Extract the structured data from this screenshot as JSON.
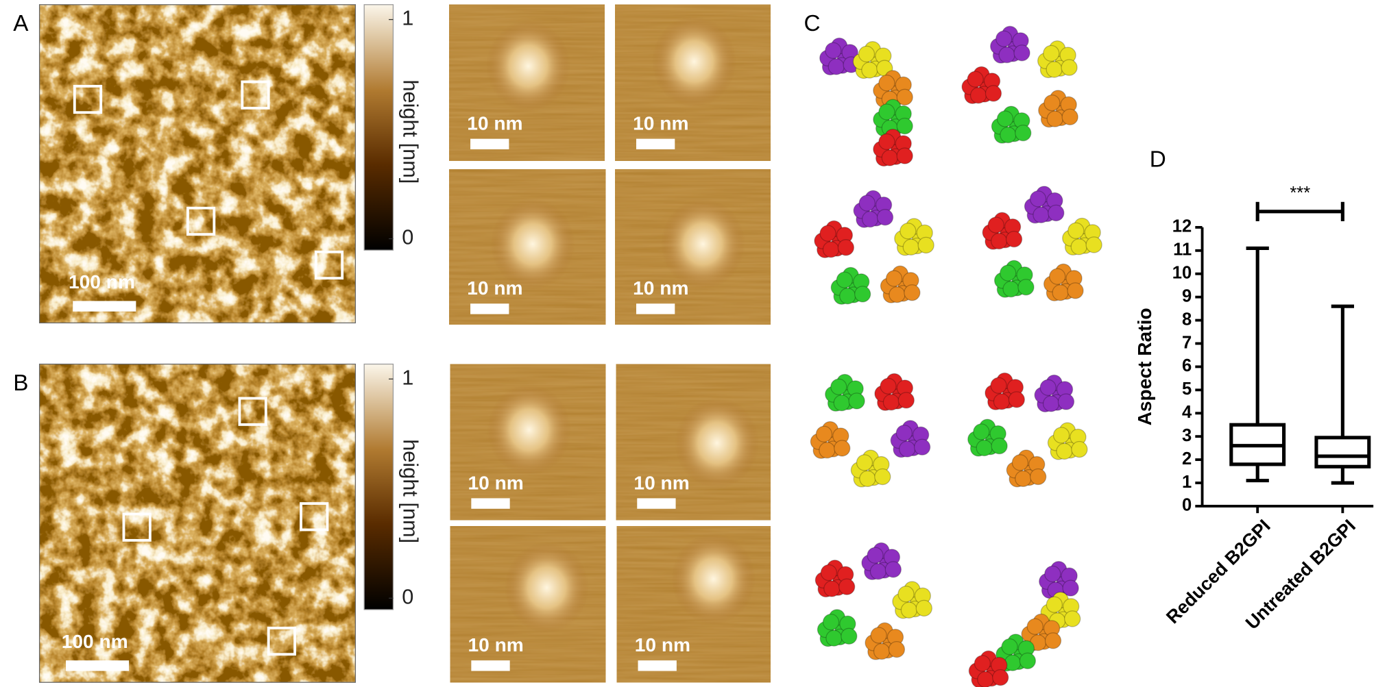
{
  "panels": [
    {
      "label": "A",
      "scale_bar": "100 nm",
      "colorbar": {
        "label": "height [nm]",
        "ticks": [
          1,
          0
        ]
      },
      "inset_scale_bars": [
        "10 nm",
        "10 nm",
        "10 nm",
        "10 nm"
      ]
    },
    {
      "label": "B",
      "scale_bar": "100 nm",
      "colorbar": {
        "label": "height [nm]",
        "ticks": [
          1,
          0
        ]
      },
      "inset_scale_bars": [
        "10 nm",
        "10 nm",
        "10 nm",
        "10 nm"
      ]
    },
    {
      "label": "C"
    },
    {
      "label": "D"
    }
  ],
  "chart_data": {
    "type": "box",
    "ylabel": "Aspect Ratio",
    "annotation": "***",
    "categories": [
      "Reduced B2GPI",
      "Untreated B2GPI"
    ],
    "boxes": [
      {
        "min": 1.1,
        "q1": 1.8,
        "median": 2.6,
        "q3": 3.5,
        "max": 11.1
      },
      {
        "min": 1.0,
        "q1": 1.7,
        "median": 2.15,
        "q3": 2.95,
        "max": 8.6
      }
    ],
    "color": "#000000",
    "ylim": [
      0,
      12
    ],
    "yticks": [
      0,
      1,
      2,
      3,
      4,
      5,
      6,
      7,
      8,
      9,
      10,
      11,
      12
    ]
  }
}
